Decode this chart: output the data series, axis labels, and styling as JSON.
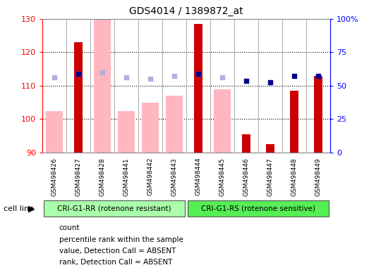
{
  "title": "GDS4014 / 1389872_at",
  "samples": [
    "GSM498426",
    "GSM498427",
    "GSM498428",
    "GSM498441",
    "GSM498442",
    "GSM498443",
    "GSM498444",
    "GSM498445",
    "GSM498446",
    "GSM498447",
    "GSM498448",
    "GSM498449"
  ],
  "group1_count": 6,
  "group2_count": 6,
  "group1_label": "CRI-G1-RR (rotenone resistant)",
  "group2_label": "CRI-G1-RS (rotenone sensitive)",
  "cell_line_label": "cell line",
  "red_bars": [
    null,
    123.0,
    null,
    null,
    null,
    null,
    128.5,
    null,
    95.5,
    92.5,
    108.5,
    113.0
  ],
  "pink_bars": [
    102.5,
    null,
    130.0,
    102.5,
    105.0,
    107.0,
    null,
    109.0,
    null,
    null,
    null,
    null
  ],
  "blue_squares": [
    null,
    113.5,
    null,
    null,
    null,
    null,
    113.5,
    null,
    111.5,
    111.0,
    113.0,
    113.0
  ],
  "lavender_squares": [
    112.5,
    113.5,
    114.0,
    112.5,
    112.0,
    113.0,
    113.5,
    112.5,
    null,
    null,
    null,
    null
  ],
  "ylim_left": [
    90,
    130
  ],
  "ylim_right": [
    0,
    100
  ],
  "yticks_left": [
    90,
    100,
    110,
    120,
    130
  ],
  "yticks_right": [
    0,
    25,
    50,
    75,
    100
  ],
  "ytick_labels_right": [
    "0",
    "25",
    "50",
    "75",
    "100%"
  ],
  "group1_color": "#aaffaa",
  "group2_color": "#55ee55",
  "bg_xaxis": "#c8c8c8",
  "legend_items": [
    {
      "label": "count",
      "color": "#cc0000"
    },
    {
      "label": "percentile rank within the sample",
      "color": "#00008b"
    },
    {
      "label": "value, Detection Call = ABSENT",
      "color": "#ffb6c1"
    },
    {
      "label": "rank, Detection Call = ABSENT",
      "color": "#b0b0e0"
    }
  ]
}
